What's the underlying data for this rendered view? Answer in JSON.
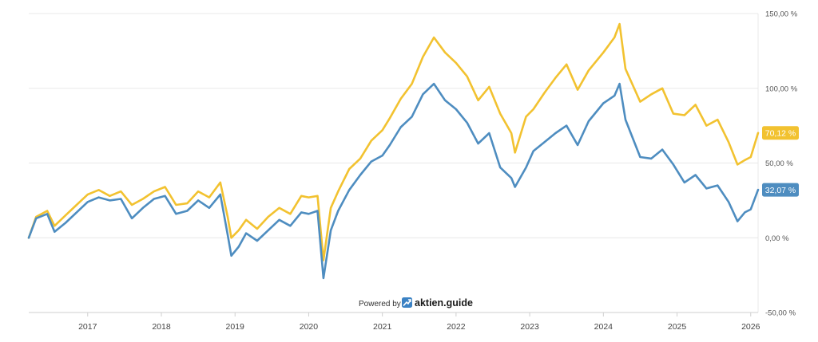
{
  "chart_data": {
    "type": "line",
    "y_unit": "%",
    "ylim": [
      -50,
      150
    ],
    "y_ticks": [
      {
        "value": 150,
        "label": "150,00 %"
      },
      {
        "value": 100,
        "label": "100,00 %"
      },
      {
        "value": 50,
        "label": "50,00 %"
      },
      {
        "value": 0,
        "label": "0,00 %"
      },
      {
        "value": -50,
        "label": "-50,00 %"
      }
    ],
    "x_ticks": [
      {
        "value": 2017,
        "label": "2017"
      },
      {
        "value": 2018,
        "label": "2018"
      },
      {
        "value": 2019,
        "label": "2019"
      },
      {
        "value": 2020,
        "label": "2020"
      },
      {
        "value": 2021,
        "label": "2021"
      },
      {
        "value": 2022,
        "label": "2022"
      },
      {
        "value": 2023,
        "label": "2023"
      },
      {
        "value": 2024,
        "label": "2024"
      },
      {
        "value": 2025,
        "label": "2025"
      },
      {
        "value": 2026,
        "label": "2026"
      }
    ],
    "xlim": [
      2016.2,
      2026.1
    ],
    "grid": true,
    "series": [
      {
        "color": "#f2c230",
        "end_label": "70,12 %",
        "points": [
          [
            2016.2,
            0
          ],
          [
            2016.3,
            14
          ],
          [
            2016.45,
            18
          ],
          [
            2016.55,
            8
          ],
          [
            2016.7,
            15
          ],
          [
            2016.85,
            22
          ],
          [
            2017.0,
            29
          ],
          [
            2017.15,
            32
          ],
          [
            2017.3,
            28
          ],
          [
            2017.45,
            31
          ],
          [
            2017.6,
            22
          ],
          [
            2017.75,
            26
          ],
          [
            2017.9,
            31
          ],
          [
            2018.05,
            34
          ],
          [
            2018.2,
            22
          ],
          [
            2018.35,
            23
          ],
          [
            2018.5,
            31
          ],
          [
            2018.65,
            27
          ],
          [
            2018.8,
            37
          ],
          [
            2018.9,
            14
          ],
          [
            2018.95,
            0
          ],
          [
            2019.05,
            5
          ],
          [
            2019.15,
            12
          ],
          [
            2019.3,
            6
          ],
          [
            2019.45,
            14
          ],
          [
            2019.6,
            20
          ],
          [
            2019.75,
            16
          ],
          [
            2019.9,
            28
          ],
          [
            2020.0,
            27
          ],
          [
            2020.12,
            28
          ],
          [
            2020.2,
            -15
          ],
          [
            2020.3,
            20
          ],
          [
            2020.4,
            31
          ],
          [
            2020.55,
            46
          ],
          [
            2020.7,
            53
          ],
          [
            2020.85,
            65
          ],
          [
            2021.0,
            72
          ],
          [
            2021.1,
            80
          ],
          [
            2021.25,
            93
          ],
          [
            2021.4,
            103
          ],
          [
            2021.55,
            121
          ],
          [
            2021.7,
            134
          ],
          [
            2021.85,
            124
          ],
          [
            2022.0,
            117
          ],
          [
            2022.15,
            108
          ],
          [
            2022.3,
            92
          ],
          [
            2022.45,
            101
          ],
          [
            2022.6,
            83
          ],
          [
            2022.75,
            70
          ],
          [
            2022.8,
            57
          ],
          [
            2022.95,
            81
          ],
          [
            2023.05,
            86
          ],
          [
            2023.2,
            97
          ],
          [
            2023.35,
            107
          ],
          [
            2023.5,
            116
          ],
          [
            2023.65,
            99
          ],
          [
            2023.8,
            112
          ],
          [
            2024.0,
            124
          ],
          [
            2024.15,
            134
          ],
          [
            2024.22,
            143
          ],
          [
            2024.3,
            113
          ],
          [
            2024.5,
            91
          ],
          [
            2024.65,
            96
          ],
          [
            2024.8,
            100
          ],
          [
            2024.95,
            83
          ],
          [
            2025.1,
            82
          ],
          [
            2025.25,
            89
          ],
          [
            2025.4,
            75
          ],
          [
            2025.55,
            79
          ],
          [
            2025.7,
            64
          ],
          [
            2025.82,
            49
          ],
          [
            2025.92,
            52
          ],
          [
            2026.0,
            54
          ],
          [
            2026.1,
            70.12
          ]
        ]
      },
      {
        "color": "#4e8dc0",
        "end_label": "32,07 %",
        "points": [
          [
            2016.2,
            0
          ],
          [
            2016.3,
            13
          ],
          [
            2016.45,
            16
          ],
          [
            2016.55,
            4
          ],
          [
            2016.7,
            10
          ],
          [
            2016.85,
            17
          ],
          [
            2017.0,
            24
          ],
          [
            2017.15,
            27
          ],
          [
            2017.3,
            25
          ],
          [
            2017.45,
            26
          ],
          [
            2017.6,
            13
          ],
          [
            2017.75,
            20
          ],
          [
            2017.9,
            26
          ],
          [
            2018.05,
            28
          ],
          [
            2018.2,
            16
          ],
          [
            2018.35,
            18
          ],
          [
            2018.5,
            25
          ],
          [
            2018.65,
            20
          ],
          [
            2018.8,
            29
          ],
          [
            2018.9,
            2
          ],
          [
            2018.95,
            -12
          ],
          [
            2019.05,
            -6
          ],
          [
            2019.15,
            3
          ],
          [
            2019.3,
            -2
          ],
          [
            2019.45,
            5
          ],
          [
            2019.6,
            12
          ],
          [
            2019.75,
            8
          ],
          [
            2019.9,
            17
          ],
          [
            2020.0,
            16
          ],
          [
            2020.12,
            18
          ],
          [
            2020.2,
            -27
          ],
          [
            2020.3,
            5
          ],
          [
            2020.4,
            18
          ],
          [
            2020.55,
            32
          ],
          [
            2020.7,
            42
          ],
          [
            2020.85,
            51
          ],
          [
            2021.0,
            55
          ],
          [
            2021.1,
            62
          ],
          [
            2021.25,
            74
          ],
          [
            2021.4,
            81
          ],
          [
            2021.55,
            96
          ],
          [
            2021.7,
            103
          ],
          [
            2021.85,
            92
          ],
          [
            2022.0,
            86
          ],
          [
            2022.15,
            77
          ],
          [
            2022.3,
            63
          ],
          [
            2022.45,
            70
          ],
          [
            2022.6,
            47
          ],
          [
            2022.75,
            40
          ],
          [
            2022.8,
            34
          ],
          [
            2022.95,
            47
          ],
          [
            2023.05,
            58
          ],
          [
            2023.2,
            64
          ],
          [
            2023.35,
            70
          ],
          [
            2023.5,
            75
          ],
          [
            2023.65,
            62
          ],
          [
            2023.8,
            78
          ],
          [
            2024.0,
            90
          ],
          [
            2024.15,
            95
          ],
          [
            2024.22,
            103
          ],
          [
            2024.3,
            79
          ],
          [
            2024.5,
            54
          ],
          [
            2024.65,
            53
          ],
          [
            2024.8,
            59
          ],
          [
            2024.95,
            49
          ],
          [
            2025.1,
            37
          ],
          [
            2025.25,
            42
          ],
          [
            2025.4,
            33
          ],
          [
            2025.55,
            35
          ],
          [
            2025.7,
            24
          ],
          [
            2025.82,
            11
          ],
          [
            2025.92,
            17
          ],
          [
            2026.0,
            19
          ],
          [
            2026.1,
            32.07
          ]
        ]
      }
    ]
  },
  "branding": {
    "powered_by": "Powered by",
    "brand_name": "aktien.guide",
    "logo_icon": "trend-up-icon"
  }
}
